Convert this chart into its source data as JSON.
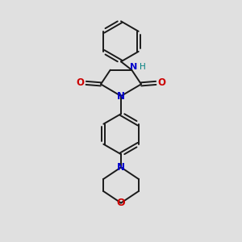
{
  "bg_color": "#e0e0e0",
  "bond_color": "#1a1a1a",
  "N_color": "#0000cc",
  "O_color": "#cc0000",
  "H_color": "#008080",
  "line_width": 1.4,
  "figsize": [
    3.0,
    3.0
  ],
  "dpi": 100,
  "xlim": [
    0,
    10
  ],
  "ylim": [
    0,
    10
  ]
}
